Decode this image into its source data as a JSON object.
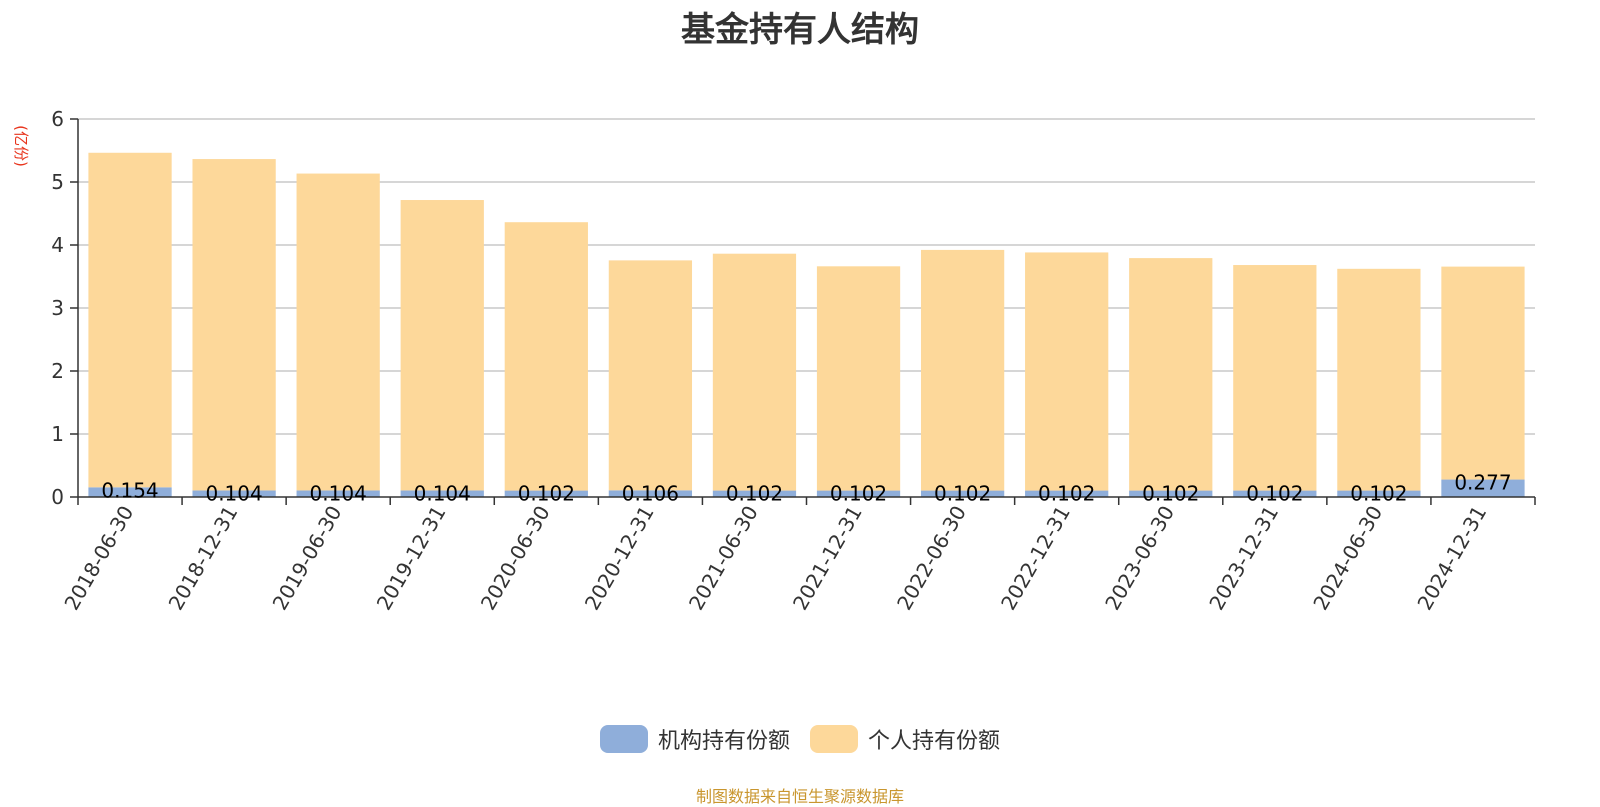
{
  "colors": {
    "institutional": "#8FAEDA",
    "individual": "#FDD89A",
    "grid": "#C8C8C8",
    "axis": "#333333",
    "ylabel": "#E8341C",
    "source": "#C9962E"
  },
  "chart_data": {
    "type": "bar",
    "stacked": true,
    "title": "基金持有人结构",
    "ylabel": "(亿份)",
    "xlabel": "",
    "ylim": [
      0,
      6
    ],
    "yticks": [
      0,
      1,
      2,
      3,
      4,
      5,
      6
    ],
    "grid": true,
    "legend_position": "bottom",
    "categories": [
      "2018-06-30",
      "2018-12-31",
      "2019-06-30",
      "2019-12-31",
      "2020-06-30",
      "2020-12-31",
      "2021-06-30",
      "2021-12-31",
      "2022-06-30",
      "2022-12-31",
      "2023-06-30",
      "2023-12-31",
      "2024-06-30",
      "2024-12-31"
    ],
    "series": [
      {
        "name": "机构持有份额",
        "color_key": "institutional",
        "values": [
          0.154,
          0.104,
          0.104,
          0.104,
          0.102,
          0.106,
          0.102,
          0.102,
          0.102,
          0.102,
          0.102,
          0.102,
          0.102,
          0.277
        ],
        "labels": [
          "0.154",
          "0.104",
          "0.104",
          "0.104",
          "0.102",
          "0.106",
          "0.102",
          "0.102",
          "0.102",
          "0.102",
          "0.102",
          "0.102",
          "0.102",
          "0.277"
        ]
      },
      {
        "name": "个人持有份额",
        "color_key": "individual",
        "values": [
          5.31,
          5.26,
          5.03,
          4.61,
          4.26,
          3.65,
          3.76,
          3.56,
          3.82,
          3.78,
          3.69,
          3.58,
          3.52,
          3.38
        ]
      }
    ]
  },
  "legend": {
    "items": [
      {
        "label": "机构持有份额"
      },
      {
        "label": "个人持有份额"
      }
    ]
  },
  "source_note": "制图数据来自恒生聚源数据库"
}
